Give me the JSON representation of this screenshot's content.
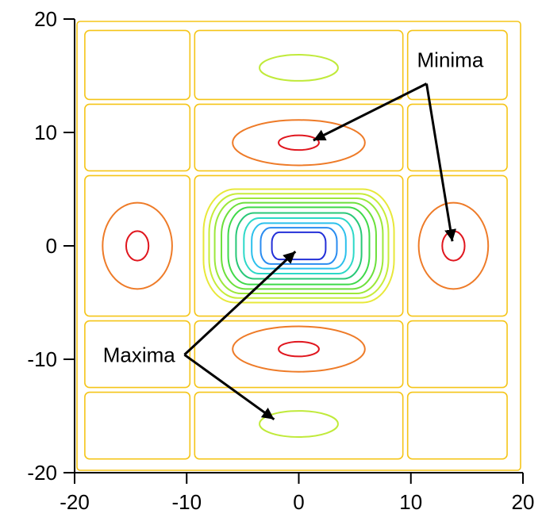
{
  "chart_data": {
    "type": "contour",
    "title": "",
    "xlabel": "",
    "ylabel": "",
    "xlim": [
      -20,
      20
    ],
    "ylim": [
      -20,
      20
    ],
    "x_ticks": [
      -20,
      -10,
      0,
      10,
      20
    ],
    "y_ticks": [
      -20,
      -10,
      0,
      10,
      20
    ],
    "x_tick_labels": [
      "-20",
      "-10",
      "0",
      "10",
      "20"
    ],
    "y_tick_labels": [
      "-20",
      "-10",
      "0",
      "10",
      "20"
    ],
    "grid": false,
    "central_maximum": {
      "center": [
        0,
        0
      ],
      "rings": [
        {
          "half_width": 8.5,
          "half_height": 5.0,
          "color": "#e8e83a"
        },
        {
          "half_width": 8.0,
          "half_height": 4.6,
          "color": "#c8ec3a"
        },
        {
          "half_width": 7.5,
          "half_height": 4.2,
          "color": "#9ce83a"
        },
        {
          "half_width": 6.9,
          "half_height": 3.8,
          "color": "#6ce03c"
        },
        {
          "half_width": 6.3,
          "half_height": 3.4,
          "color": "#3fd94a"
        },
        {
          "half_width": 5.6,
          "half_height": 2.9,
          "color": "#28c878"
        },
        {
          "half_width": 4.9,
          "half_height": 2.45,
          "color": "#2cd8c8"
        },
        {
          "half_width": 4.2,
          "half_height": 2.0,
          "color": "#2cc0ec"
        },
        {
          "half_width": 3.4,
          "half_height": 1.6,
          "color": "#2a8cf0"
        },
        {
          "half_width": 2.4,
          "half_height": 1.2,
          "color": "#2430d8"
        }
      ]
    },
    "minima": [
      {
        "center": [
          0,
          9.1
        ],
        "outer": [
          5.9,
          2.0
        ],
        "inner": [
          1.8,
          0.65
        ]
      },
      {
        "center": [
          0,
          -9.1
        ],
        "outer": [
          5.9,
          2.0
        ],
        "inner": [
          1.8,
          0.65
        ]
      },
      {
        "center": [
          -14.4,
          0
        ],
        "outer": [
          3.1,
          3.8
        ],
        "inner": [
          1.0,
          1.3
        ]
      },
      {
        "center": [
          13.8,
          0
        ],
        "outer": [
          3.1,
          3.8
        ],
        "inner": [
          1.0,
          1.3
        ]
      }
    ],
    "secondary_maxima": [
      {
        "center": [
          0,
          15.7
        ],
        "size": [
          3.5,
          1.15
        ]
      },
      {
        "center": [
          0,
          -15.7
        ],
        "size": [
          3.5,
          1.15
        ]
      }
    ],
    "colors": {
      "boundary": "#f5c518",
      "minimum_outer": "#ee7b28",
      "minimum_inner": "#e0161e",
      "secondary_maximum": "#c0ea3a",
      "axis": "#000000",
      "arrow": "#000000"
    },
    "annotations": [
      {
        "text": "Minima",
        "label_at": [
          11.4,
          16.4
        ],
        "arrow_origin": [
          11.4,
          14.3
        ],
        "arrow_targets": [
          [
            1.3,
            9.3
          ],
          [
            13.7,
            0.4
          ]
        ]
      },
      {
        "text": "Maxima",
        "label_at": [
          -10.6,
          -9.6
        ],
        "arrow_origin": [
          -10.2,
          -9.6
        ],
        "arrow_targets": [
          [
            -0.3,
            -0.5
          ],
          [
            -2.2,
            -15.3
          ]
        ]
      }
    ]
  }
}
